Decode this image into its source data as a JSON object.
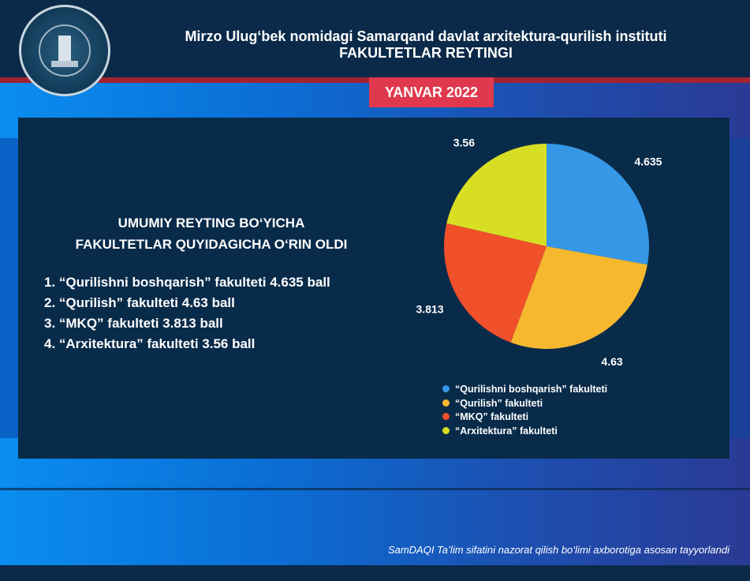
{
  "header": {
    "institute": "Mirzo Ulug‘bek nomidagi Samarqand davlat arxitektura-qurilish instituti",
    "title": "FAKULTETLAR REYTINGI",
    "date_tab": "YANVAR 2022"
  },
  "summary": {
    "heading_line1": "UMUMIY REYTING BO‘YICHA",
    "heading_line2": "FAKULTETLAR QUYIDAGICHA O‘RIN OLDI",
    "ranking": [
      "1. “Qurilishni boshqarish” fakulteti 4.635 ball",
      "2. “Qurilish” fakulteti 4.63 ball",
      "3. “MKQ” fakulteti 3.813 ball",
      "4. “Arxitektura” fakulteti 3.56 ball"
    ]
  },
  "chart_data": {
    "type": "pie",
    "categories": [
      "“Qurilishni boshqarish” fakulteti",
      "“Qurilish” fakulteti",
      "“MKQ” fakulteti",
      "“Arxitektura” fakulteti"
    ],
    "values": [
      4.635,
      4.63,
      3.813,
      3.56
    ],
    "data_labels": [
      "4.635",
      "4.63",
      "3.813",
      "3.56"
    ],
    "colors": [
      "#3597e6",
      "#f5b82e",
      "#f0502a",
      "#d8de24"
    ],
    "legend_position": "bottom"
  },
  "footer": {
    "note": "SamDAQI Ta’lim sifatini nazorat qilish bo‘limi axborotiga asosan tayyorlandi"
  }
}
